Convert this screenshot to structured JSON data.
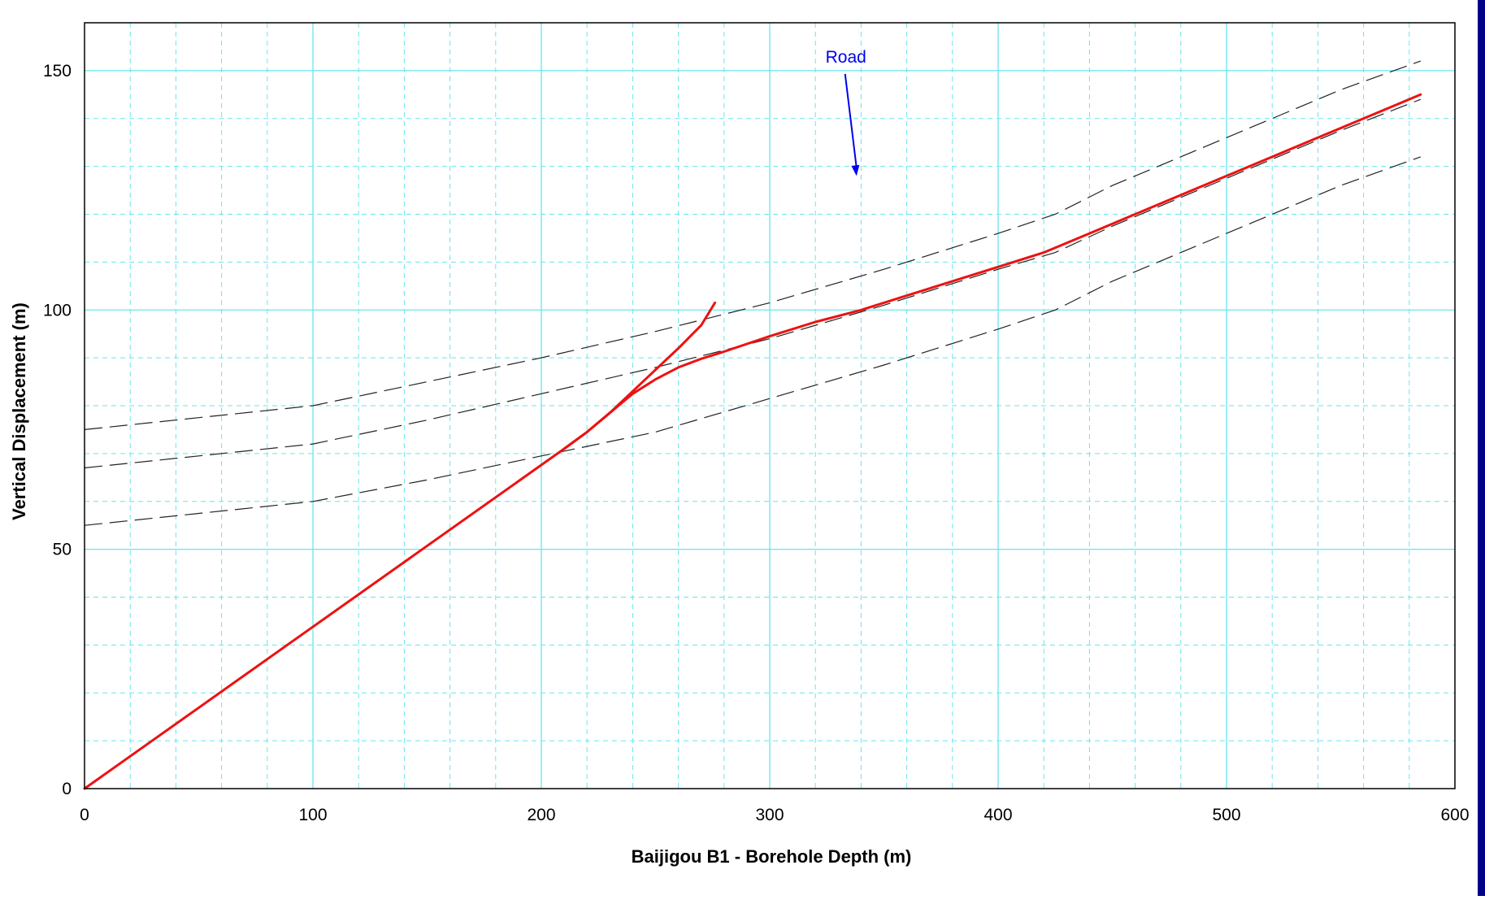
{
  "chart_data": {
    "type": "line",
    "title": "",
    "xlabel": "Baijigou B1 - Borehole Depth (m)",
    "ylabel": "Vertical Displacement (m)",
    "xlim": [
      0,
      600
    ],
    "ylim": [
      0,
      160
    ],
    "x_ticks": [
      0,
      100,
      200,
      300,
      400,
      500,
      600
    ],
    "y_ticks": [
      0,
      50,
      100,
      150
    ],
    "x_minor_step": 20,
    "y_minor_step": 10,
    "grid": true,
    "legend": "none",
    "colors": {
      "grid_major": "#66e6ee",
      "grid_minor": "#66e6ee",
      "red_series": "#ee1111",
      "dashed_series": "#222222",
      "annotation": "#0000ee",
      "frame_edge": "#00008b"
    },
    "series": [
      {
        "style": "solid-red",
        "x": [
          0,
          210,
          220,
          230,
          240,
          250,
          260,
          270,
          280,
          300,
          320,
          340,
          360,
          380,
          400,
          420,
          440,
          460,
          480,
          500,
          520,
          540,
          560,
          585
        ],
        "y": [
          0,
          71,
          74.5,
          78.5,
          82.5,
          85.5,
          88,
          89.8,
          91.3,
          94.5,
          97.5,
          100,
          103,
          106,
          109,
          112,
          116,
          120,
          124,
          128,
          132,
          136,
          140,
          145
        ]
      },
      {
        "style": "solid-red",
        "x": [
          210,
          220,
          230,
          240,
          250,
          260,
          270,
          276
        ],
        "y": [
          71,
          74.5,
          78.5,
          83,
          87.5,
          92,
          96.8,
          101.5
        ]
      },
      {
        "style": "dashed-black",
        "x": [
          0,
          50,
          100,
          150,
          200,
          250,
          300,
          350,
          400,
          425,
          450,
          500,
          550,
          585
        ],
        "y": [
          75,
          77.5,
          80,
          85,
          90,
          95.5,
          101.5,
          108.5,
          116,
          120,
          126,
          136,
          146,
          152
        ]
      },
      {
        "style": "dashed-black",
        "x": [
          0,
          50,
          100,
          150,
          200,
          250,
          300,
          350,
          400,
          425,
          450,
          500,
          550,
          585
        ],
        "y": [
          67,
          69.5,
          72,
          77,
          82.5,
          88,
          94,
          101,
          108.5,
          112,
          117.5,
          127.5,
          137.5,
          144
        ]
      },
      {
        "style": "dashed-black",
        "x": [
          0,
          50,
          100,
          150,
          200,
          250,
          300,
          350,
          400,
          425,
          450,
          500,
          550,
          585
        ],
        "y": [
          55,
          57.5,
          60,
          64.5,
          69.5,
          74.5,
          81.5,
          88.5,
          96,
          100,
          106,
          116,
          126,
          132
        ]
      }
    ],
    "annotations": [
      {
        "text": "Road",
        "arrow_from": [
          333,
          150
        ],
        "arrow_to": [
          338,
          128
        ]
      }
    ]
  }
}
